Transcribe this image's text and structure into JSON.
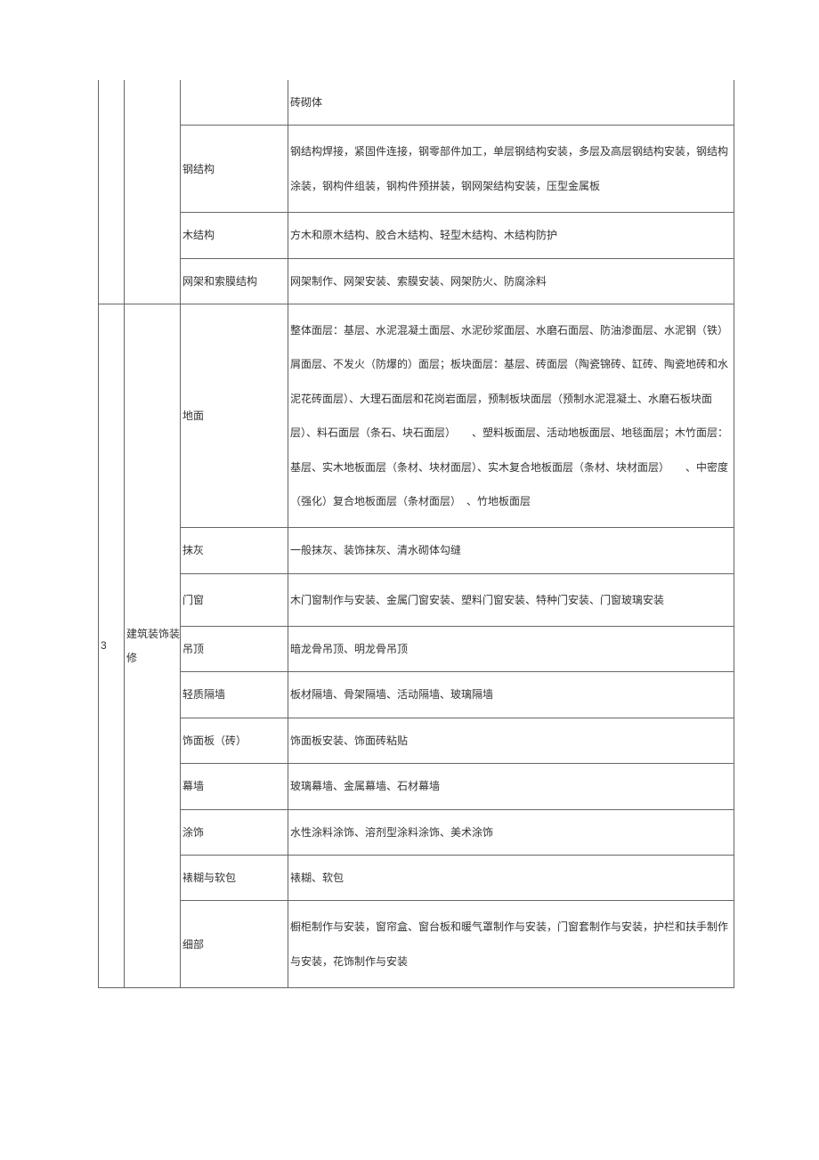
{
  "rows": [
    {
      "col1": "",
      "col2": "",
      "col3": "",
      "col4": "砖砌体",
      "continuation": true
    },
    {
      "col3": "钢结构",
      "col4": "钢结构焊接，紧固件连接，钢零部件加工，单层钢结构安装，多层及高层钢结构安装，钢结构涂装，钢构件组装，钢构件预拼装，钢网架结构安装，压型金属板"
    },
    {
      "col3": "木结构",
      "col4": "方木和原木结构、胶合木结构、轻型木结构、木结构防护"
    },
    {
      "col3": "网架和索膜结构",
      "col4": "网架制作、网架安装、索膜安装、网架防火、防腐涂料"
    },
    {
      "col1": "3",
      "col2": "建筑装饰装修",
      "col3": "地面",
      "col4": "整体面层：基层、水泥混凝土面层、水泥砂浆面层、水磨石面层、防油渗面层、水泥钢（铁）屑面层、不发火（防爆的）面层；板块面层：基层、砖面层（陶瓷锦砖、缸砖、陶瓷地砖和水泥花砖面层）、大理石面层和花岗岩面层，预制板块面层（预制水泥混凝土、水磨石板块面层）、料石面层（条石、块石面层）　　、塑料板面层、活动地板面层、地毯面层；木竹面层：基层、实木地板面层（条材、块材面层）、实木复合地板面层（条材、块材面层）　　、中密度（强化）复合地板面层（条材面层）　、竹地板面层"
    },
    {
      "col3": "抹灰",
      "col4": "一般抹灰、装饰抹灰、清水砌体勾缝"
    },
    {
      "col3": "门窗",
      "col4": "木门窗制作与安装、金属门窗安装、塑料门窗安装、特种门安装、门窗玻璃安装"
    },
    {
      "col3": "吊顶",
      "col4": "暗龙骨吊顶、明龙骨吊顶"
    },
    {
      "col3": "轻质隔墙",
      "col4": "板材隔墙、骨架隔墙、活动隔墙、玻璃隔墙"
    },
    {
      "col3": "饰面板（砖）",
      "col4": "饰面板安装、饰面砖粘贴"
    },
    {
      "col3": "幕墙",
      "col4": "玻璃幕墙、金属幕墙、石材幕墙"
    },
    {
      "col3": "涂饰",
      "col4": "水性涂料涂饰、溶剂型涂料涂饰、美术涂饰"
    },
    {
      "col3": "裱糊与软包",
      "col4": "裱糊、软包"
    },
    {
      "col3": "细部",
      "col4": "橱柜制作与安装，窗帘盒、窗台板和暖气罩制作与安装，门窗套制作与安装，护栏和扶手制作与安装，花饰制作与安装"
    }
  ]
}
